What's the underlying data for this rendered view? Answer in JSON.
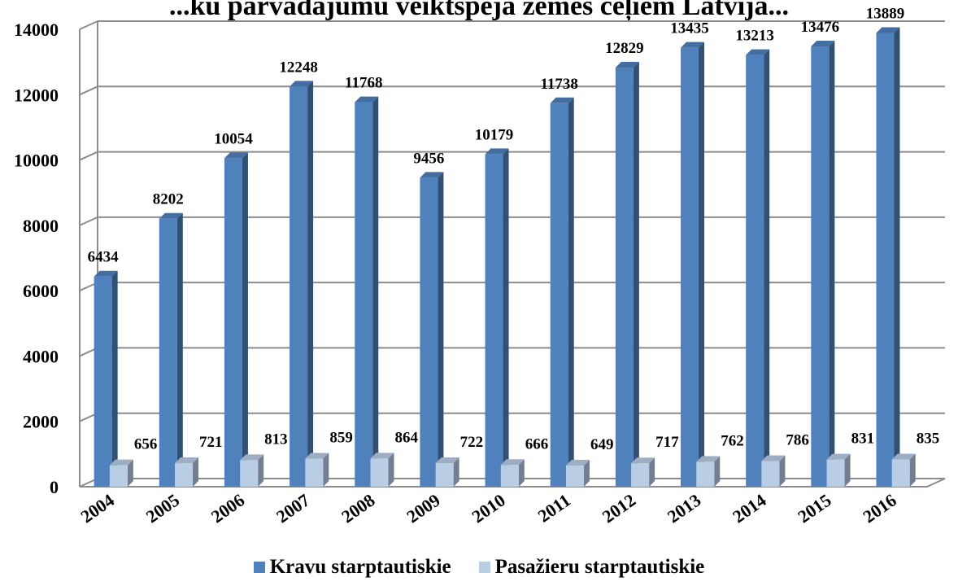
{
  "chart_data": {
    "type": "bar",
    "title": "...ku pārvadājumu veiktspēja zemes ceļiem Latvijā...",
    "categories": [
      "2004",
      "2005",
      "2006",
      "2007",
      "2008",
      "2009",
      "2010",
      "2011",
      "2012",
      "2013",
      "2014",
      "2015",
      "2016"
    ],
    "series": [
      {
        "name": "Kravu starptautiskie",
        "color": "#4F81BD",
        "values": [
          6434,
          8202,
          10054,
          12248,
          11768,
          9456,
          10179,
          11738,
          12829,
          13435,
          13213,
          13476,
          13889
        ]
      },
      {
        "name": "Pasažieru starptautiskie",
        "color": "#B9CDE5",
        "values": [
          656,
          721,
          813,
          859,
          864,
          722,
          666,
          649,
          717,
          762,
          786,
          831,
          835
        ]
      }
    ],
    "ylim": [
      0,
      14000
    ],
    "yticks": [
      0,
      2000,
      4000,
      6000,
      8000,
      10000,
      12000,
      14000
    ],
    "grid": true,
    "legend_position": "bottom",
    "style": "3d-clustered-column"
  }
}
